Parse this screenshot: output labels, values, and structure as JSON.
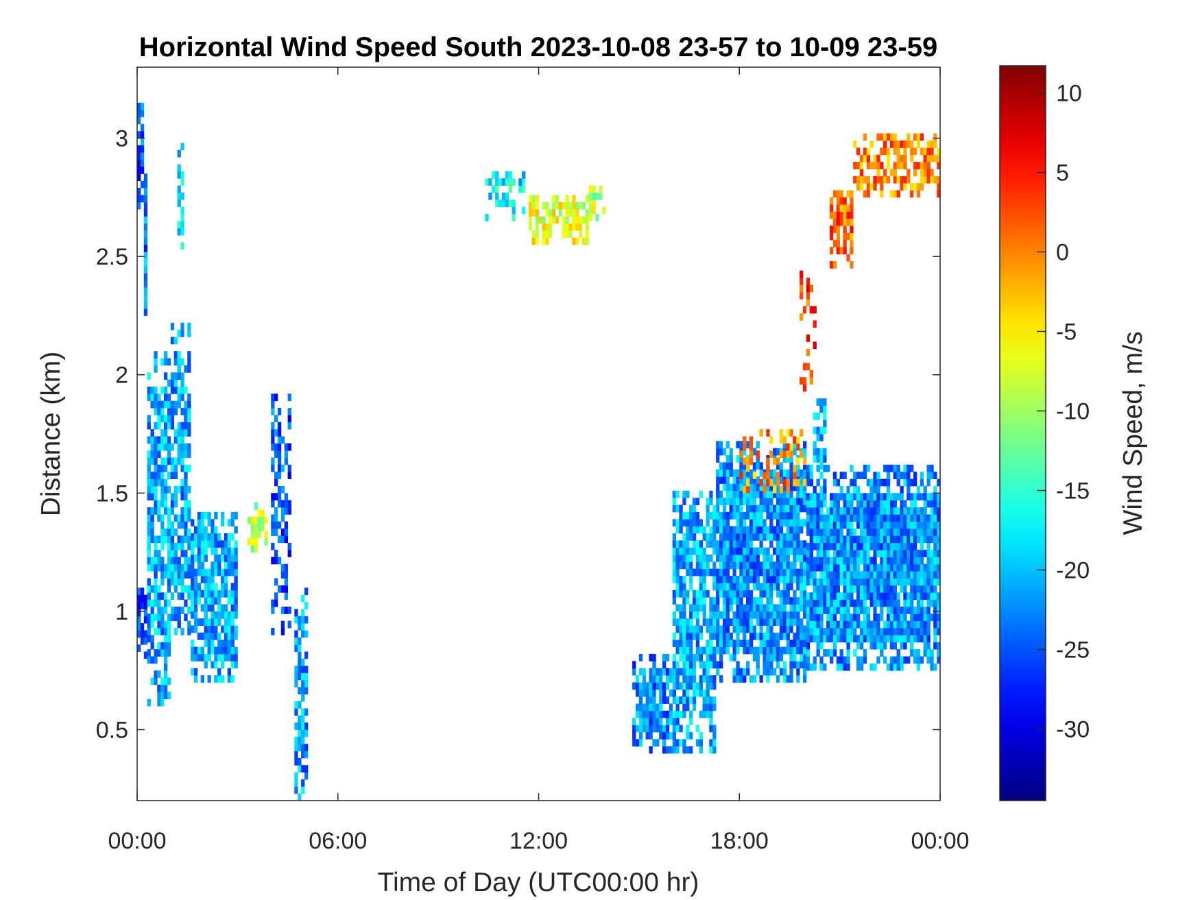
{
  "chart_data": {
    "type": "heatmap",
    "title": "Horizontal Wind Speed South 2023-10-08 23-57 to 10-09 23-59",
    "xlabel": "Time of Day (UTC00:00 hr)",
    "ylabel": "Distance (km)",
    "colorbar_label": "Wind Speed, m/s",
    "colormap": "jet",
    "xlim_hours": [
      0,
      24
    ],
    "ylim": [
      0.2,
      3.3
    ],
    "clim": [
      -34.5,
      11.7
    ],
    "x_ticks": [
      {
        "hours": 0,
        "label": "00:00"
      },
      {
        "hours": 6,
        "label": "06:00"
      },
      {
        "hours": 12,
        "label": "12:00"
      },
      {
        "hours": 18,
        "label": "18:00"
      },
      {
        "hours": 24,
        "label": "00:00"
      }
    ],
    "y_ticks": [
      {
        "value": 0.5,
        "label": "0.5"
      },
      {
        "value": 1,
        "label": "1"
      },
      {
        "value": 1.5,
        "label": "1.5"
      },
      {
        "value": 2,
        "label": "2"
      },
      {
        "value": 2.5,
        "label": "2.5"
      },
      {
        "value": 3,
        "label": "3"
      }
    ],
    "colorbar_ticks": [
      {
        "value": 10,
        "label": "10"
      },
      {
        "value": 5,
        "label": "5"
      },
      {
        "value": 0,
        "label": "0"
      },
      {
        "value": -5,
        "label": "-5"
      },
      {
        "value": -10,
        "label": "-10"
      },
      {
        "value": -15,
        "label": "-15"
      },
      {
        "value": -20,
        "label": "-20"
      },
      {
        "value": -25,
        "label": "-25"
      },
      {
        "value": -30,
        "label": "-30"
      }
    ],
    "regions": [
      {
        "t": [
          0.0,
          0.3
        ],
        "z": [
          0.8,
          1.1
        ],
        "value": -26,
        "density": 0.85
      },
      {
        "t": [
          0.0,
          0.2
        ],
        "z": [
          2.7,
          3.15
        ],
        "value": -25,
        "density": 0.8
      },
      {
        "t": [
          0.2,
          0.3
        ],
        "z": [
          2.25,
          2.85
        ],
        "value": -23,
        "density": 0.8
      },
      {
        "t": [
          0.3,
          1.0
        ],
        "z": [
          0.6,
          2.1
        ],
        "value": -21,
        "density": 0.75
      },
      {
        "t": [
          1.0,
          1.6
        ],
        "z": [
          0.9,
          2.2
        ],
        "value": -21,
        "density": 0.7
      },
      {
        "t": [
          1.2,
          1.4
        ],
        "z": [
          2.5,
          3.0
        ],
        "value": -19,
        "density": 0.6
      },
      {
        "t": [
          1.6,
          3.0
        ],
        "z": [
          0.7,
          1.4
        ],
        "value": -21,
        "density": 0.8
      },
      {
        "t": [
          3.3,
          3.9
        ],
        "z": [
          1.25,
          1.45
        ],
        "value": -9,
        "density": 0.7
      },
      {
        "t": [
          4.0,
          4.6
        ],
        "z": [
          0.9,
          1.9
        ],
        "value": -25,
        "density": 0.45
      },
      {
        "t": [
          4.7,
          5.1
        ],
        "z": [
          0.2,
          1.1
        ],
        "value": -22,
        "density": 0.7
      },
      {
        "t": [
          10.4,
          11.6
        ],
        "z": [
          2.65,
          2.85
        ],
        "value": -18,
        "density": 0.5
      },
      {
        "t": [
          11.7,
          13.5
        ],
        "z": [
          2.55,
          2.75
        ],
        "value": -7,
        "density": 0.75
      },
      {
        "t": [
          13.5,
          14.0
        ],
        "z": [
          2.65,
          2.8
        ],
        "value": -9,
        "density": 0.8
      },
      {
        "t": [
          14.8,
          16.0
        ],
        "z": [
          0.4,
          0.8
        ],
        "value": -23,
        "density": 0.7
      },
      {
        "t": [
          16.0,
          17.3
        ],
        "z": [
          0.4,
          1.5
        ],
        "value": -21,
        "density": 0.8
      },
      {
        "t": [
          17.3,
          20.0
        ],
        "z": [
          0.7,
          1.7
        ],
        "value": -22,
        "density": 0.9
      },
      {
        "t": [
          20.0,
          24.0
        ],
        "z": [
          0.75,
          1.6
        ],
        "value": -22,
        "density": 0.92
      },
      {
        "t": [
          20.2,
          20.6
        ],
        "z": [
          1.6,
          1.9
        ],
        "value": -21,
        "density": 0.7
      },
      {
        "t": [
          18.0,
          20.0
        ],
        "z": [
          1.5,
          1.75
        ],
        "value": 0,
        "density": 0.35
      },
      {
        "t": [
          19.8,
          20.3
        ],
        "z": [
          1.9,
          2.45
        ],
        "value": 3,
        "density": 0.3
      },
      {
        "t": [
          20.7,
          21.4
        ],
        "z": [
          2.45,
          2.8
        ],
        "value": 1,
        "density": 0.7
      },
      {
        "t": [
          21.4,
          24.0
        ],
        "z": [
          2.75,
          3.02
        ],
        "value": 0,
        "density": 0.65
      }
    ]
  }
}
